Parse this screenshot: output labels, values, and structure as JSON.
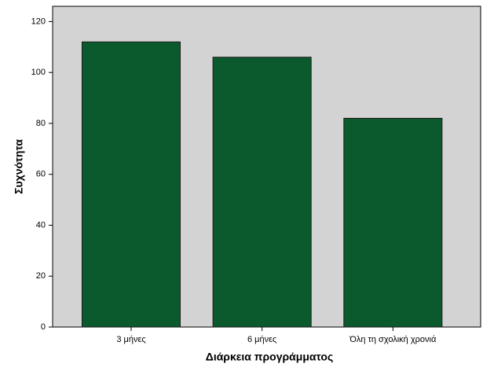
{
  "chart_data": {
    "type": "bar",
    "x_label": "Διάρκεια προγράμματος",
    "y_label": "Συχνότητα",
    "categories": [
      "3 μήνες",
      "6 μήνες",
      "Όλη τη σχολική χρονιά"
    ],
    "values": [
      112,
      106,
      82
    ],
    "color": "#0b5a2e",
    "ylim": [
      0,
      126
    ],
    "yticks": [
      0,
      20,
      40,
      60,
      80,
      100,
      120
    ]
  }
}
